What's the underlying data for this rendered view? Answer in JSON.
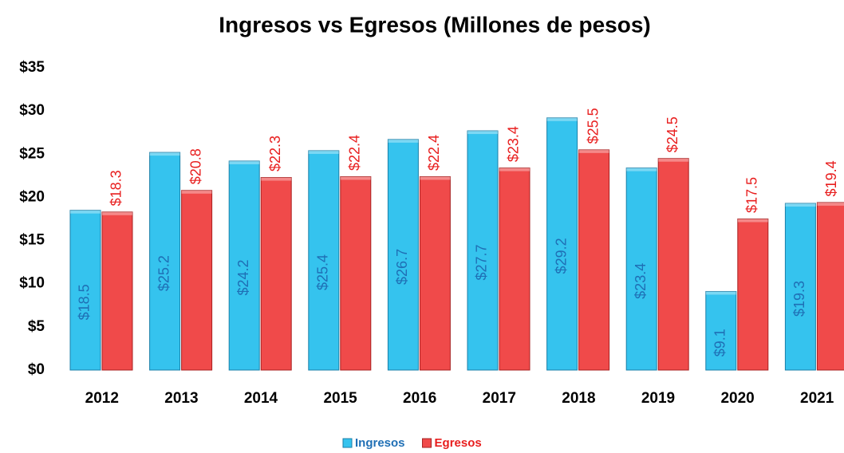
{
  "chart_data": {
    "type": "bar",
    "title": "Ingresos vs Egresos (Millones de pesos)",
    "categories": [
      "2012",
      "2013",
      "2014",
      "2015",
      "2016",
      "2017",
      "2018",
      "2019",
      "2020",
      "2021"
    ],
    "series": [
      {
        "name": "Ingresos",
        "color": "#35c3ee",
        "values": [
          18.5,
          25.2,
          24.2,
          25.4,
          26.7,
          27.7,
          29.2,
          23.4,
          9.1,
          19.3
        ],
        "value_labels": [
          "$18.5",
          "$25.2",
          "$24.2",
          "$25.4",
          "$26.7",
          "$27.7",
          "$29.2",
          "$23.4",
          "$9.1",
          "$19.3"
        ]
      },
      {
        "name": "Egresos",
        "color": "#f04a4a",
        "values": [
          18.3,
          20.8,
          22.3,
          22.4,
          22.4,
          23.4,
          25.5,
          24.5,
          17.5,
          19.4
        ],
        "value_labels": [
          "$18.3",
          "$20.8",
          "$22.3",
          "$22.4",
          "$22.4",
          "$23.4",
          "$25.5",
          "$24.5",
          "$17.5",
          "$19.4"
        ]
      }
    ],
    "ylim": [
      0,
      35
    ],
    "yticks": [
      {
        "value": 0,
        "label": "$0"
      },
      {
        "value": 5,
        "label": "$5"
      },
      {
        "value": 10,
        "label": "$10"
      },
      {
        "value": 15,
        "label": "$15"
      },
      {
        "value": 20,
        "label": "$20"
      },
      {
        "value": 25,
        "label": "$25"
      },
      {
        "value": 30,
        "label": "$30"
      },
      {
        "value": 35,
        "label": "$35"
      }
    ],
    "legend": "bottom"
  }
}
